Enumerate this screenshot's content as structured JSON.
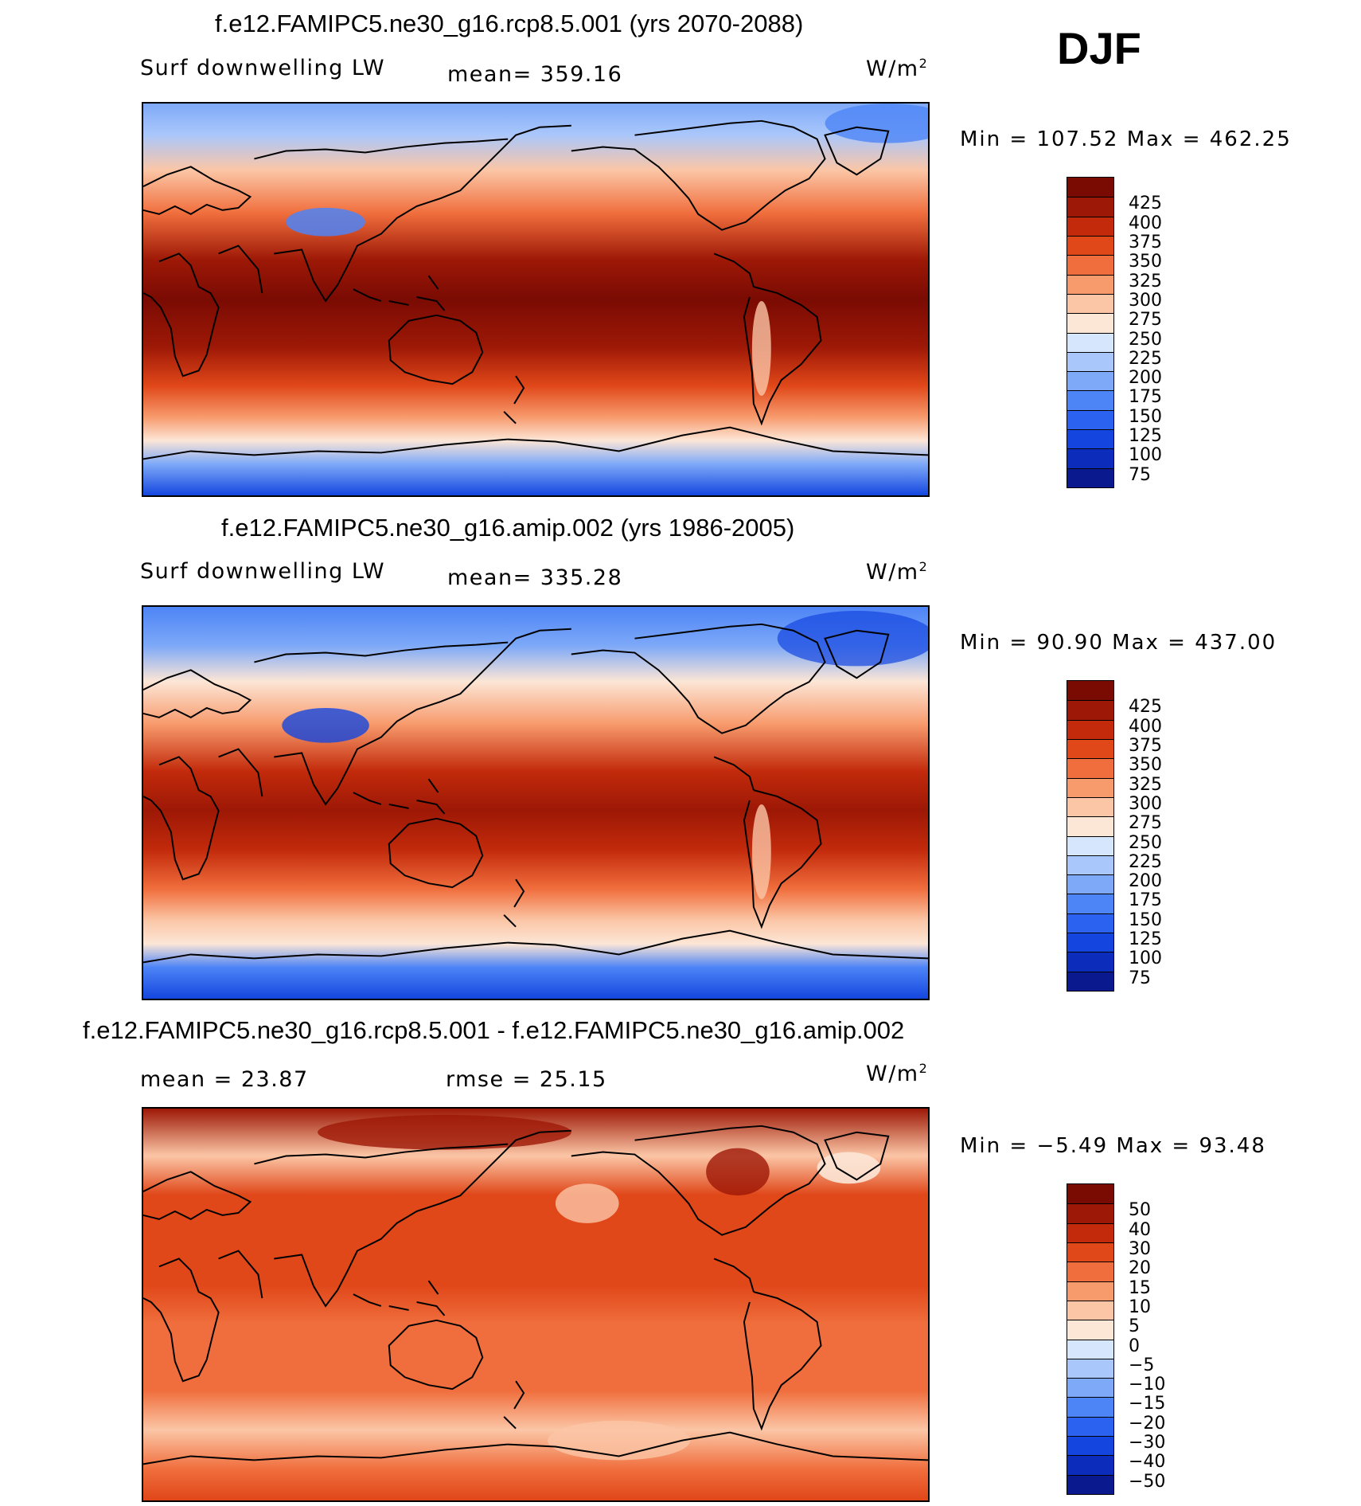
{
  "season": "DJF",
  "colors": {
    "abs_scale": [
      "#0a1a8e",
      "#0c2dbb",
      "#1446df",
      "#2c62f0",
      "#4d84f6",
      "#7ea9f8",
      "#aac7fb",
      "#d6e7fd",
      "#fce6d6",
      "#fbc6a6",
      "#f79a6c",
      "#f06e3d",
      "#e04719",
      "#c22a0b",
      "#9d1806",
      "#7a0b03"
    ],
    "diff_scale": [
      "#0a1a8e",
      "#0c2dbb",
      "#1446df",
      "#2c62f0",
      "#4d84f6",
      "#7ea9f8",
      "#aac7fb",
      "#d6e7fd",
      "#fce6d6",
      "#fbc6a6",
      "#f79a6c",
      "#f06e3d",
      "#e04719",
      "#c22a0b",
      "#9d1806",
      "#7a0b03"
    ]
  },
  "panels": [
    {
      "title": "f.e12.FAMIPC5.ne30_g16.rcp8.5.001 (yrs 2070-2088)",
      "left_label": "Surf downwelling LW",
      "center_label": "mean= 359.16",
      "units_base": "W/m",
      "units_exp": "2",
      "minmax": "Min = 107.52 Max = 462.25",
      "map_name": "rcp85-map",
      "chart_data": {
        "type": "heatmap",
        "title": "f.e12.FAMIPC5.ne30_g16.rcp8.5.001 (yrs 2070-2088)",
        "variable": "Surf downwelling LW",
        "units": "W/m2",
        "mean": 359.16,
        "min": 107.52,
        "max": 462.25,
        "levels": [
          75,
          100,
          125,
          150,
          175,
          200,
          225,
          250,
          275,
          300,
          325,
          350,
          375,
          400,
          425
        ],
        "zonal_profile": {
          "lat": [
            90,
            75,
            60,
            45,
            30,
            15,
            0,
            -15,
            -30,
            -45,
            -60,
            -75,
            -90
          ],
          "value": [
            170,
            215,
            270,
            320,
            380,
            420,
            440,
            425,
            375,
            330,
            290,
            150,
            110
          ]
        }
      }
    },
    {
      "title": "f.e12.FAMIPC5.ne30_g16.amip.002 (yrs 1986-2005)",
      "left_label": "Surf downwelling LW",
      "center_label": "mean= 335.28",
      "units_base": "W/m",
      "units_exp": "2",
      "minmax": "Min =  90.90 Max = 437.00",
      "map_name": "amip-map",
      "chart_data": {
        "type": "heatmap",
        "title": "f.e12.FAMIPC5.ne30_g16.amip.002 (yrs 1986-2005)",
        "variable": "Surf downwelling LW",
        "units": "W/m2",
        "mean": 335.28,
        "min": 90.9,
        "max": 437.0,
        "levels": [
          75,
          100,
          125,
          150,
          175,
          200,
          225,
          250,
          275,
          300,
          325,
          350,
          375,
          400,
          425
        ],
        "zonal_profile": {
          "lat": [
            90,
            75,
            60,
            45,
            30,
            15,
            0,
            -15,
            -30,
            -45,
            -60,
            -75,
            -90
          ],
          "value": [
            150,
            190,
            245,
            300,
            360,
            400,
            420,
            405,
            355,
            310,
            270,
            140,
            95
          ]
        }
      }
    },
    {
      "title": "f.e12.FAMIPC5.ne30_g16.rcp8.5.001 - f.e12.FAMIPC5.ne30_g16.amip.002",
      "left_label": "mean =   23.87",
      "center_label": "rmse =   25.15",
      "units_base": "W/m",
      "units_exp": "2",
      "minmax": "Min =  −5.49 Max =  93.48",
      "map_name": "difference-map",
      "chart_data": {
        "type": "heatmap",
        "title": "f.e12.FAMIPC5.ne30_g16.rcp8.5.001 - f.e12.FAMIPC5.ne30_g16.amip.002",
        "units": "W/m2",
        "mean": 23.87,
        "rmse": 25.15,
        "min": -5.49,
        "max": 93.48,
        "levels": [
          -50,
          -40,
          -30,
          -20,
          -15,
          -10,
          -5,
          0,
          5,
          10,
          15,
          20,
          30,
          40,
          50
        ],
        "zonal_profile": {
          "lat": [
            90,
            75,
            60,
            45,
            30,
            15,
            0,
            -15,
            -30,
            -45,
            -60,
            -75,
            -90
          ],
          "value": [
            45,
            28,
            18,
            22,
            24,
            23,
            25,
            24,
            20,
            14,
            9,
            20,
            22
          ]
        }
      }
    }
  ],
  "legends": {
    "abs_labels": [
      "425",
      "400",
      "375",
      "350",
      "325",
      "300",
      "275",
      "250",
      "225",
      "200",
      "175",
      "150",
      "125",
      "100",
      "75"
    ],
    "diff_labels": [
      "50",
      "40",
      "30",
      "20",
      "15",
      "10",
      "5",
      "0",
      "−5",
      "−10",
      "−15",
      "−20",
      "−30",
      "−40",
      "−50"
    ]
  }
}
